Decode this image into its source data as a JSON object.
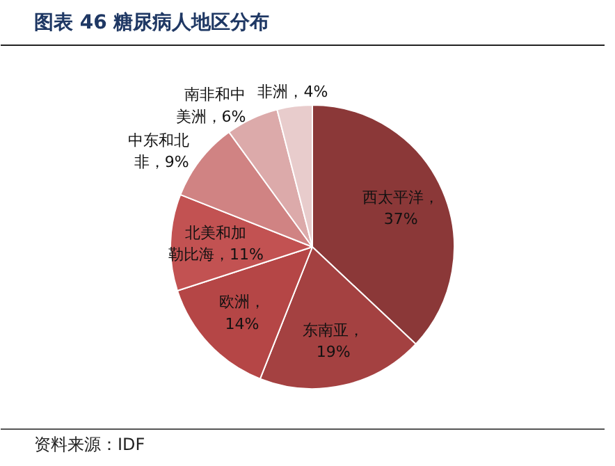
{
  "chart_data": {
    "type": "pie",
    "title": "图表 46 糖尿病人地区分布",
    "categories": [
      "西太平洋",
      "东南亚",
      "欧洲",
      "北美和加勒比海",
      "中东和北非",
      "南非和中美洲",
      "非洲"
    ],
    "values": [
      37,
      19,
      14,
      11,
      9,
      6,
      4
    ],
    "value_labels": [
      "，37%",
      "，19%",
      "，14%",
      "，11%",
      "，9%",
      "，6%",
      "，4%"
    ],
    "colors": [
      "#8b3838",
      "#a44141",
      "#b54646",
      "#c25252",
      "#d08383",
      "#dcaaaa",
      "#e8cccc"
    ],
    "annotations": [
      "资料来源：IDF"
    ]
  }
}
